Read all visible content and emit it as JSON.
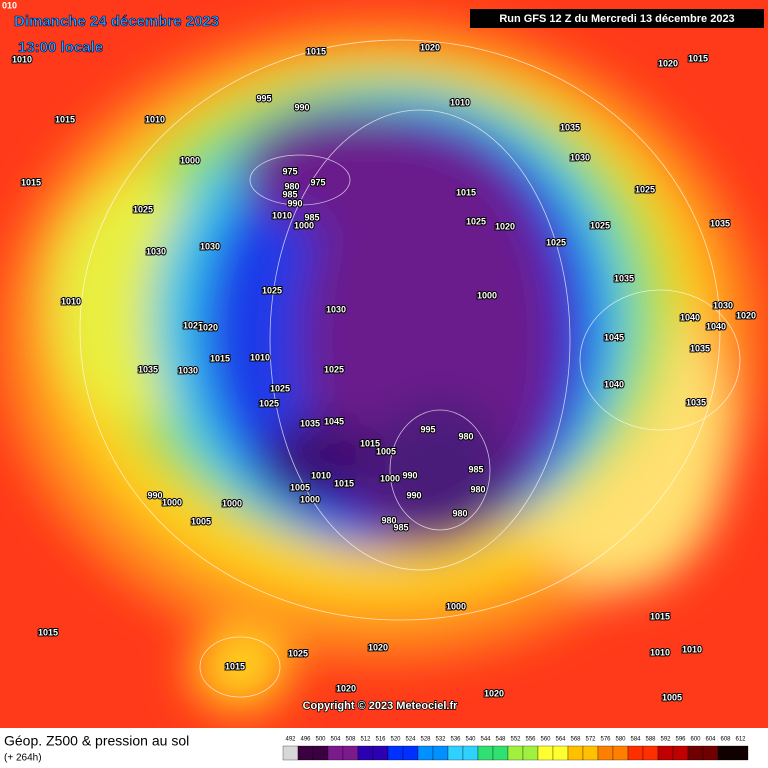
{
  "header": {
    "date": "Dimanche 24 décembre 2023",
    "time": "13:00 locale",
    "run": "Run GFS 12 Z du Mercredi 13 décembre 2023",
    "corner": "010"
  },
  "isobar_labels": [
    "1015",
    "1020",
    "1010",
    "1020",
    "1015",
    "1015",
    "1010",
    "995",
    "990",
    "1010",
    "1035",
    "1000",
    "1030",
    "1015",
    "975",
    "975",
    "980",
    "985",
    "990",
    "1010",
    "985",
    "1000",
    "1015",
    "1025",
    "1025",
    "1020",
    "1025",
    "1025",
    "1025",
    "1035",
    "1030",
    "1030",
    "1035",
    "1000",
    "1025",
    "1030",
    "1010",
    "1025",
    "1020",
    "1030",
    "1040",
    "1040",
    "1020",
    "1045",
    "1015",
    "1010",
    "1035",
    "1030",
    "1025",
    "1035",
    "1025",
    "1025",
    "1040",
    "1035",
    "995",
    "980",
    "1015",
    "1005",
    "1035",
    "1045",
    "985",
    "990",
    "1000",
    "980",
    "1010",
    "1005",
    "1015",
    "1000",
    "990",
    "1000",
    "1000",
    "990",
    "980",
    "985",
    "980",
    "1005",
    "1000",
    "1015",
    "1015",
    "1025",
    "1020",
    "1015",
    "1010",
    "1010",
    "1020",
    "1020",
    "1005"
  ],
  "copyright": "Copyright © 2023 Meteociel.fr",
  "footer": {
    "title": "Géop. Z500 & pression au sol",
    "lead": "(+ 264h)"
  },
  "legend": {
    "scale": [
      492,
      496,
      500,
      504,
      508,
      512,
      516,
      520,
      524,
      528,
      532,
      536,
      540,
      544,
      548,
      552,
      556,
      560,
      564,
      568,
      572,
      576,
      580,
      584,
      588,
      592,
      596,
      600,
      604,
      608,
      612
    ]
  }
}
